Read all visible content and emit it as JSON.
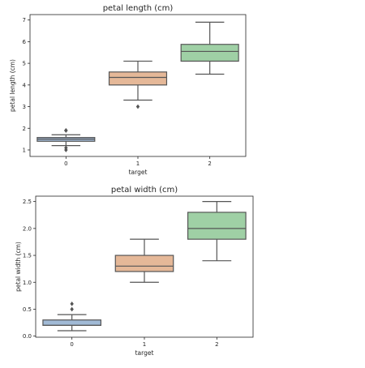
{
  "chart_data": [
    {
      "type": "box",
      "title": "petal length (cm)",
      "xlabel": "target",
      "ylabel": "petal length (cm)",
      "categories": [
        "0",
        "1",
        "2"
      ],
      "ylim": [
        0.7,
        7.25
      ],
      "yticks": [
        "1",
        "2",
        "3",
        "4",
        "5",
        "6",
        "7"
      ],
      "grid": false,
      "boxes": [
        {
          "category": "0",
          "min": 1.2,
          "q1": 1.4,
          "median": 1.5,
          "q3": 1.575,
          "max": 1.7,
          "outliers": [
            1.0,
            1.1,
            1.9,
            1.9,
            1.9
          ],
          "color": "#a1bad6"
        },
        {
          "category": "1",
          "min": 3.3,
          "q1": 4.0,
          "median": 4.35,
          "q3": 4.6,
          "max": 5.1,
          "outliers": [
            3.0
          ],
          "color": "#e5b898"
        },
        {
          "category": "2",
          "min": 4.5,
          "q1": 5.1,
          "median": 5.55,
          "q3": 5.875,
          "max": 6.9,
          "outliers": [],
          "color": "#9fd0a5"
        }
      ]
    },
    {
      "type": "box",
      "title": "petal width (cm)",
      "xlabel": "target",
      "ylabel": "petal width (cm)",
      "categories": [
        "0",
        "1",
        "2"
      ],
      "ylim": [
        -0.02,
        2.6
      ],
      "yticks": [
        "0.0",
        "0.5",
        "1.0",
        "1.5",
        "2.0",
        "2.5"
      ],
      "grid": false,
      "boxes": [
        {
          "category": "0",
          "min": 0.1,
          "q1": 0.2,
          "median": 0.2,
          "q3": 0.3,
          "max": 0.4,
          "outliers": [
            0.5,
            0.6
          ],
          "color": "#a1bad6"
        },
        {
          "category": "1",
          "min": 1.0,
          "q1": 1.2,
          "median": 1.3,
          "q3": 1.5,
          "max": 1.8,
          "outliers": [],
          "color": "#e5b898"
        },
        {
          "category": "2",
          "min": 1.4,
          "q1": 1.8,
          "median": 2.0,
          "q3": 2.3,
          "max": 2.5,
          "outliers": [],
          "color": "#9fd0a5"
        }
      ]
    }
  ]
}
